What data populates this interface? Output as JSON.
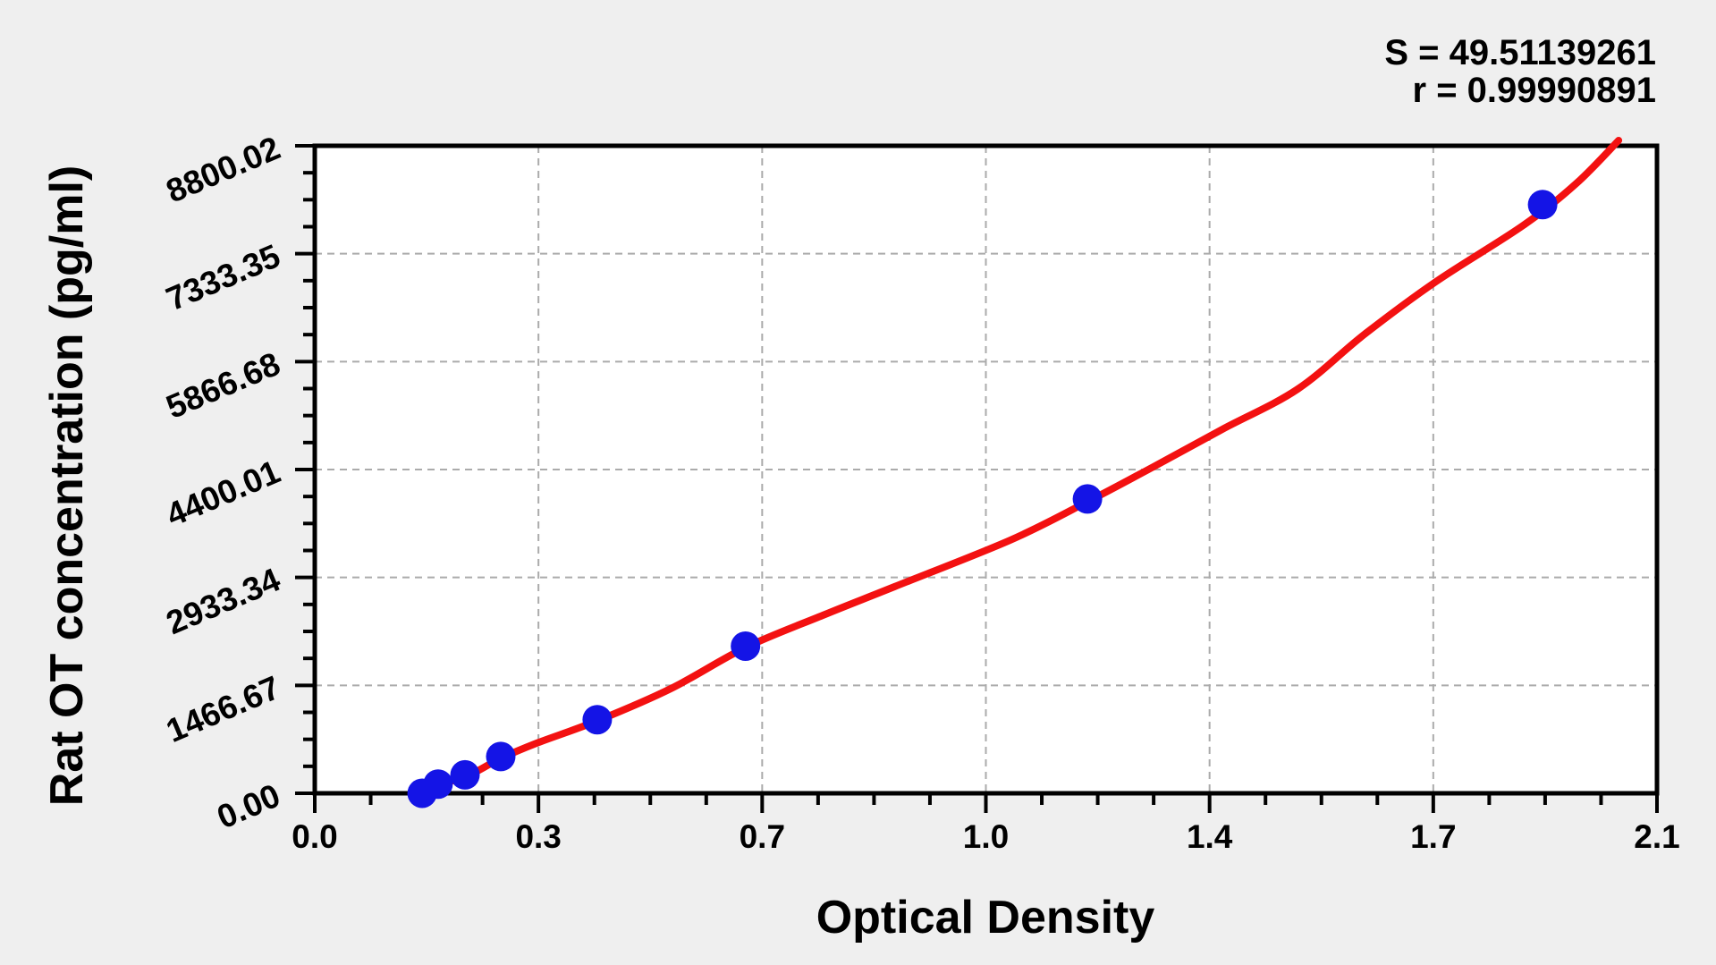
{
  "figure": {
    "description": "ELISA standard curve scatter plot with fitted red curve and blue data points",
    "stats_annotation": {
      "line1": "S = 49.51139261",
      "line2": "r = 0.99990891"
    }
  },
  "chart_data": {
    "type": "scatter",
    "title": "",
    "xlabel": "Optical Density",
    "ylabel": "Rat OT concentration (pg/ml)",
    "xlim": [
      0,
      2.1
    ],
    "ylim": [
      0,
      8800.02
    ],
    "x_tick_labels": [
      "0.0",
      "0.3",
      "0.7",
      "1.0",
      "1.4",
      "1.7",
      "2.1"
    ],
    "y_tick_labels": [
      "0.00",
      "1466.67",
      "2933.34",
      "4400.01",
      "5866.68",
      "7333.35",
      "8800.02"
    ],
    "minor_ticks_between_major": 3,
    "grid": "dashed gray lines at interior major ticks, both axes",
    "legend": null,
    "S": "49.51139261",
    "r": "0.99990891",
    "series": [
      {
        "name": "standard-points",
        "type": "scatter",
        "color": "#1414e6",
        "points_od_conc": [
          [
            0.168,
            0
          ],
          [
            0.193,
            125
          ],
          [
            0.235,
            250
          ],
          [
            0.291,
            500
          ],
          [
            0.442,
            1000
          ],
          [
            0.674,
            2000
          ],
          [
            1.209,
            4000
          ],
          [
            1.921,
            8000
          ]
        ]
      },
      {
        "name": "fitted-curve",
        "type": "line",
        "color": "#f31111",
        "points_od_conc": [
          [
            0.158,
            -49
          ],
          [
            0.193,
            122
          ],
          [
            0.235,
            219
          ],
          [
            0.291,
            474
          ],
          [
            0.347,
            681
          ],
          [
            0.442,
            985
          ],
          [
            0.557,
            1422
          ],
          [
            0.674,
            1981
          ],
          [
            0.795,
            2419
          ],
          [
            0.907,
            2808
          ],
          [
            1.088,
            3440
          ],
          [
            1.209,
            3962
          ],
          [
            1.312,
            4437
          ],
          [
            1.42,
            4947
          ],
          [
            1.538,
            5494
          ],
          [
            1.642,
            6235
          ],
          [
            1.754,
            6953
          ],
          [
            1.891,
            7719
          ],
          [
            1.974,
            8290
          ],
          [
            2.04,
            8873
          ]
        ]
      }
    ]
  },
  "colors": {
    "background": "#efefef",
    "plot_background": "#ffffff",
    "grid": "#ababab",
    "axis": "#000000",
    "curve_red": "#f31111",
    "point_blue": "#1414e6"
  }
}
